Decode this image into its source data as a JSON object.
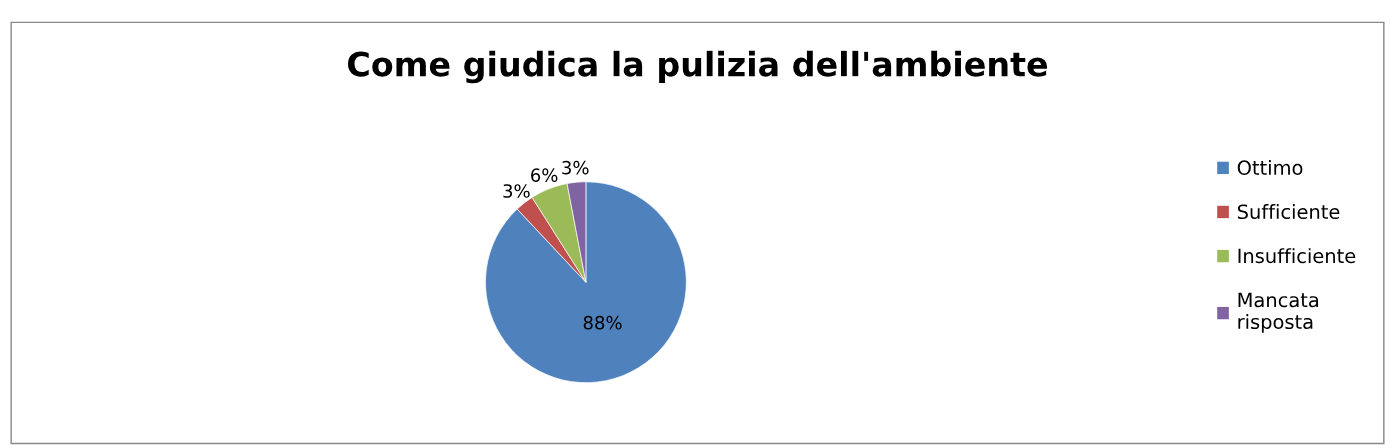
{
  "chart_data": {
    "type": "pie",
    "title": "Come giudica la pulizia dell'ambiente",
    "categories": [
      "Ottimo",
      "Sufficiente",
      "Insufficiente",
      "Mancata risposta"
    ],
    "values": [
      88,
      3,
      6,
      3
    ],
    "colors": [
      "#4f81bd",
      "#c0504d",
      "#9bbb59",
      "#8064a2"
    ],
    "value_labels": [
      "88%",
      "3%",
      "6%",
      "3%"
    ],
    "legend": "right"
  }
}
